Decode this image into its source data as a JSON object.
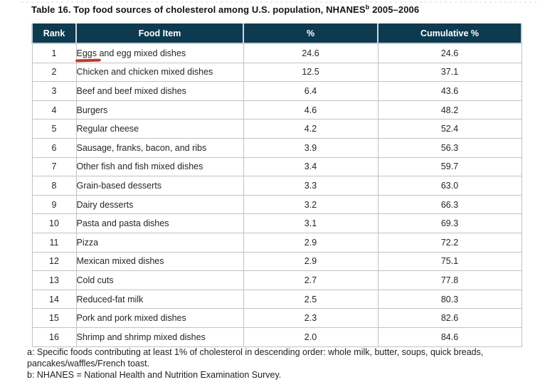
{
  "title": {
    "main": "Table 16. Top food sources of cholesterol among U.S. population, NHANES",
    "sup": "b",
    "year": "2005–2006"
  },
  "table": {
    "columns": [
      "Rank",
      "Food Item",
      "%",
      "Cumulative %"
    ],
    "rows": [
      {
        "rank": "1",
        "food": "Eggs and egg mixed dishes",
        "pct": "24.6",
        "cum": "24.6",
        "mark": "Eggs"
      },
      {
        "rank": "2",
        "food": "Chicken and chicken mixed dishes",
        "pct": "12.5",
        "cum": "37.1"
      },
      {
        "rank": "3",
        "food": "Beef and beef mixed dishes",
        "pct": "6.4",
        "cum": "43.6"
      },
      {
        "rank": "4",
        "food": "Burgers",
        "pct": "4.6",
        "cum": "48.2"
      },
      {
        "rank": "5",
        "food": "Regular cheese",
        "pct": "4.2",
        "cum": "52.4"
      },
      {
        "rank": "6",
        "food": "Sausage, franks, bacon, and ribs",
        "pct": "3.9",
        "cum": "56.3"
      },
      {
        "rank": "7",
        "food": "Other fish and fish mixed dishes",
        "pct": "3.4",
        "cum": "59.7"
      },
      {
        "rank": "8",
        "food": "Grain-based desserts",
        "pct": "3.3",
        "cum": "63.0"
      },
      {
        "rank": "9",
        "food": "Dairy desserts",
        "pct": "3.2",
        "cum": "66.3"
      },
      {
        "rank": "10",
        "food": "Pasta and pasta dishes",
        "pct": "3.1",
        "cum": "69.3"
      },
      {
        "rank": "11",
        "food": "Pizza",
        "pct": "2.9",
        "cum": "72.2"
      },
      {
        "rank": "12",
        "food": "Mexican mixed dishes",
        "pct": "2.9",
        "cum": "75.1"
      },
      {
        "rank": "13",
        "food": "Cold cuts",
        "pct": "2.7",
        "cum": "77.8"
      },
      {
        "rank": "14",
        "food": "Reduced-fat milk",
        "pct": "2.5",
        "cum": "80.3"
      },
      {
        "rank": "15",
        "food": "Pork and pork mixed dishes",
        "pct": "2.3",
        "cum": "82.6"
      },
      {
        "rank": "16",
        "food": "Shrimp and shrimp mixed dishes",
        "pct": "2.0",
        "cum": "84.6"
      }
    ]
  },
  "footnotes": [
    "a: Specific foods contributing at least 1% of cholesterol in descending order: whole milk, butter, soups, quick breads, pancakes/waffles/French toast.",
    "b: NHANES = National Health and Nutrition Examination Survey."
  ],
  "colors": {
    "header_bg": "#0d3a4f",
    "header_text": "#ffffff",
    "body_border": "#c2c2c2",
    "annotation_red": "#c5362c"
  },
  "chart_data": {
    "type": "table",
    "title": "Table 16. Top food sources of cholesterol among U.S. population, NHANES 2005–2006",
    "categories": [
      "Eggs and egg mixed dishes",
      "Chicken and chicken mixed dishes",
      "Beef and beef mixed dishes",
      "Burgers",
      "Regular cheese",
      "Sausage, franks, bacon, and ribs",
      "Other fish and fish mixed dishes",
      "Grain-based desserts",
      "Dairy desserts",
      "Pasta and pasta dishes",
      "Pizza",
      "Mexican mixed dishes",
      "Cold cuts",
      "Reduced-fat milk",
      "Pork and pork mixed dishes",
      "Shrimp and shrimp mixed dishes"
    ],
    "series": [
      {
        "name": "%",
        "values": [
          24.6,
          12.5,
          6.4,
          4.6,
          4.2,
          3.9,
          3.4,
          3.3,
          3.2,
          3.1,
          2.9,
          2.9,
          2.7,
          2.5,
          2.3,
          2.0
        ]
      },
      {
        "name": "Cumulative %",
        "values": [
          24.6,
          37.1,
          43.6,
          48.2,
          52.4,
          56.3,
          59.7,
          63.0,
          66.3,
          69.3,
          72.2,
          75.1,
          77.8,
          80.3,
          82.6,
          84.6
        ]
      }
    ]
  }
}
